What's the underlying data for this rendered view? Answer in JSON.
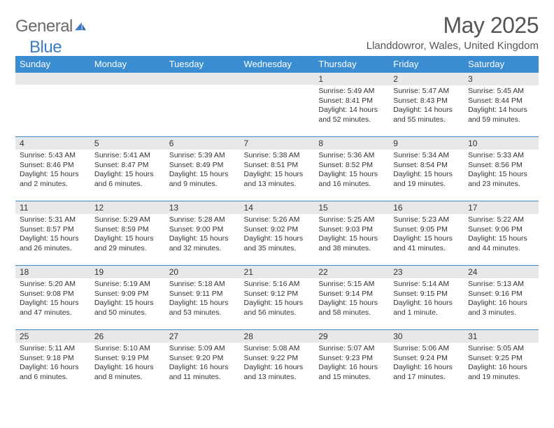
{
  "logo": {
    "text1": "General",
    "text2": "Blue"
  },
  "title": {
    "month_year": "May 2025",
    "location": "Llanddowror, Wales, United Kingdom"
  },
  "colors": {
    "header_bg": "#3b8dd1",
    "band_bg": "#e7e8e9",
    "border": "#3b8dd1",
    "logo_gray": "#6b6b6b",
    "logo_blue": "#3b7cc4",
    "text": "#333333"
  },
  "dow": [
    "Sunday",
    "Monday",
    "Tuesday",
    "Wednesday",
    "Thursday",
    "Friday",
    "Saturday"
  ],
  "weeks": [
    [
      {
        "n": "",
        "sr": "",
        "ss": "",
        "dl": ""
      },
      {
        "n": "",
        "sr": "",
        "ss": "",
        "dl": ""
      },
      {
        "n": "",
        "sr": "",
        "ss": "",
        "dl": ""
      },
      {
        "n": "",
        "sr": "",
        "ss": "",
        "dl": ""
      },
      {
        "n": "1",
        "sr": "Sunrise: 5:49 AM",
        "ss": "Sunset: 8:41 PM",
        "dl": "Daylight: 14 hours and 52 minutes."
      },
      {
        "n": "2",
        "sr": "Sunrise: 5:47 AM",
        "ss": "Sunset: 8:43 PM",
        "dl": "Daylight: 14 hours and 55 minutes."
      },
      {
        "n": "3",
        "sr": "Sunrise: 5:45 AM",
        "ss": "Sunset: 8:44 PM",
        "dl": "Daylight: 14 hours and 59 minutes."
      }
    ],
    [
      {
        "n": "4",
        "sr": "Sunrise: 5:43 AM",
        "ss": "Sunset: 8:46 PM",
        "dl": "Daylight: 15 hours and 2 minutes."
      },
      {
        "n": "5",
        "sr": "Sunrise: 5:41 AM",
        "ss": "Sunset: 8:47 PM",
        "dl": "Daylight: 15 hours and 6 minutes."
      },
      {
        "n": "6",
        "sr": "Sunrise: 5:39 AM",
        "ss": "Sunset: 8:49 PM",
        "dl": "Daylight: 15 hours and 9 minutes."
      },
      {
        "n": "7",
        "sr": "Sunrise: 5:38 AM",
        "ss": "Sunset: 8:51 PM",
        "dl": "Daylight: 15 hours and 13 minutes."
      },
      {
        "n": "8",
        "sr": "Sunrise: 5:36 AM",
        "ss": "Sunset: 8:52 PM",
        "dl": "Daylight: 15 hours and 16 minutes."
      },
      {
        "n": "9",
        "sr": "Sunrise: 5:34 AM",
        "ss": "Sunset: 8:54 PM",
        "dl": "Daylight: 15 hours and 19 minutes."
      },
      {
        "n": "10",
        "sr": "Sunrise: 5:33 AM",
        "ss": "Sunset: 8:56 PM",
        "dl": "Daylight: 15 hours and 23 minutes."
      }
    ],
    [
      {
        "n": "11",
        "sr": "Sunrise: 5:31 AM",
        "ss": "Sunset: 8:57 PM",
        "dl": "Daylight: 15 hours and 26 minutes."
      },
      {
        "n": "12",
        "sr": "Sunrise: 5:29 AM",
        "ss": "Sunset: 8:59 PM",
        "dl": "Daylight: 15 hours and 29 minutes."
      },
      {
        "n": "13",
        "sr": "Sunrise: 5:28 AM",
        "ss": "Sunset: 9:00 PM",
        "dl": "Daylight: 15 hours and 32 minutes."
      },
      {
        "n": "14",
        "sr": "Sunrise: 5:26 AM",
        "ss": "Sunset: 9:02 PM",
        "dl": "Daylight: 15 hours and 35 minutes."
      },
      {
        "n": "15",
        "sr": "Sunrise: 5:25 AM",
        "ss": "Sunset: 9:03 PM",
        "dl": "Daylight: 15 hours and 38 minutes."
      },
      {
        "n": "16",
        "sr": "Sunrise: 5:23 AM",
        "ss": "Sunset: 9:05 PM",
        "dl": "Daylight: 15 hours and 41 minutes."
      },
      {
        "n": "17",
        "sr": "Sunrise: 5:22 AM",
        "ss": "Sunset: 9:06 PM",
        "dl": "Daylight: 15 hours and 44 minutes."
      }
    ],
    [
      {
        "n": "18",
        "sr": "Sunrise: 5:20 AM",
        "ss": "Sunset: 9:08 PM",
        "dl": "Daylight: 15 hours and 47 minutes."
      },
      {
        "n": "19",
        "sr": "Sunrise: 5:19 AM",
        "ss": "Sunset: 9:09 PM",
        "dl": "Daylight: 15 hours and 50 minutes."
      },
      {
        "n": "20",
        "sr": "Sunrise: 5:18 AM",
        "ss": "Sunset: 9:11 PM",
        "dl": "Daylight: 15 hours and 53 minutes."
      },
      {
        "n": "21",
        "sr": "Sunrise: 5:16 AM",
        "ss": "Sunset: 9:12 PM",
        "dl": "Daylight: 15 hours and 56 minutes."
      },
      {
        "n": "22",
        "sr": "Sunrise: 5:15 AM",
        "ss": "Sunset: 9:14 PM",
        "dl": "Daylight: 15 hours and 58 minutes."
      },
      {
        "n": "23",
        "sr": "Sunrise: 5:14 AM",
        "ss": "Sunset: 9:15 PM",
        "dl": "Daylight: 16 hours and 1 minute."
      },
      {
        "n": "24",
        "sr": "Sunrise: 5:13 AM",
        "ss": "Sunset: 9:16 PM",
        "dl": "Daylight: 16 hours and 3 minutes."
      }
    ],
    [
      {
        "n": "25",
        "sr": "Sunrise: 5:11 AM",
        "ss": "Sunset: 9:18 PM",
        "dl": "Daylight: 16 hours and 6 minutes."
      },
      {
        "n": "26",
        "sr": "Sunrise: 5:10 AM",
        "ss": "Sunset: 9:19 PM",
        "dl": "Daylight: 16 hours and 8 minutes."
      },
      {
        "n": "27",
        "sr": "Sunrise: 5:09 AM",
        "ss": "Sunset: 9:20 PM",
        "dl": "Daylight: 16 hours and 11 minutes."
      },
      {
        "n": "28",
        "sr": "Sunrise: 5:08 AM",
        "ss": "Sunset: 9:22 PM",
        "dl": "Daylight: 16 hours and 13 minutes."
      },
      {
        "n": "29",
        "sr": "Sunrise: 5:07 AM",
        "ss": "Sunset: 9:23 PM",
        "dl": "Daylight: 16 hours and 15 minutes."
      },
      {
        "n": "30",
        "sr": "Sunrise: 5:06 AM",
        "ss": "Sunset: 9:24 PM",
        "dl": "Daylight: 16 hours and 17 minutes."
      },
      {
        "n": "31",
        "sr": "Sunrise: 5:05 AM",
        "ss": "Sunset: 9:25 PM",
        "dl": "Daylight: 16 hours and 19 minutes."
      }
    ]
  ]
}
